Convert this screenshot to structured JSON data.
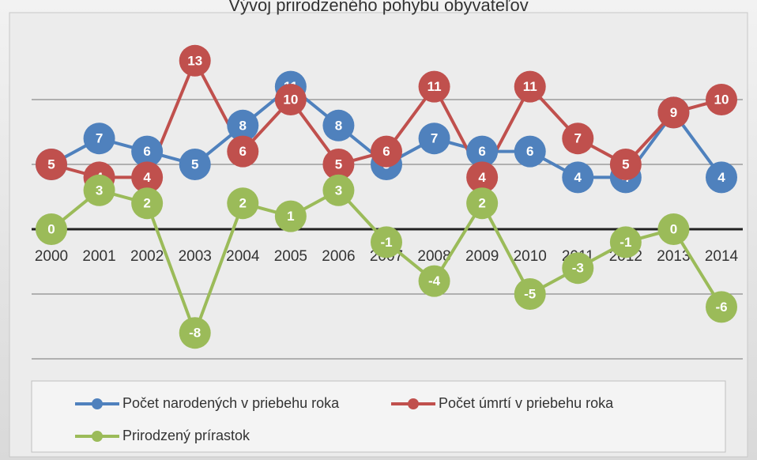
{
  "chart_data": {
    "type": "line",
    "title": "Vývoj prirodzeného pohybu obyvateľov",
    "categories": [
      "2000",
      "2001",
      "2002",
      "2003",
      "2004",
      "2005",
      "2006",
      "2007",
      "2008",
      "2009",
      "2010",
      "2011",
      "2012",
      "2013",
      "2014"
    ],
    "series": [
      {
        "name": "Počet narodených v priebehu roka",
        "color": "#4f81bd",
        "values": [
          5,
          7,
          6,
          5,
          8,
          11,
          8,
          5,
          7,
          6,
          6,
          4,
          4,
          9,
          4
        ]
      },
      {
        "name": "Počet úmrtí v priebehu roka",
        "color": "#c0504d",
        "values": [
          5,
          4,
          4,
          13,
          6,
          10,
          5,
          6,
          11,
          4,
          11,
          7,
          5,
          9,
          10
        ]
      },
      {
        "name": "Prirodzený prírastok",
        "color": "#9bbb59",
        "values": [
          0,
          3,
          2,
          -8,
          2,
          1,
          3,
          -1,
          -4,
          2,
          -5,
          -3,
          -1,
          0,
          -6
        ]
      }
    ],
    "ylim": [
      -10,
      15
    ],
    "yticks": [
      -10,
      -5,
      0,
      5,
      10
    ],
    "grid": true
  }
}
